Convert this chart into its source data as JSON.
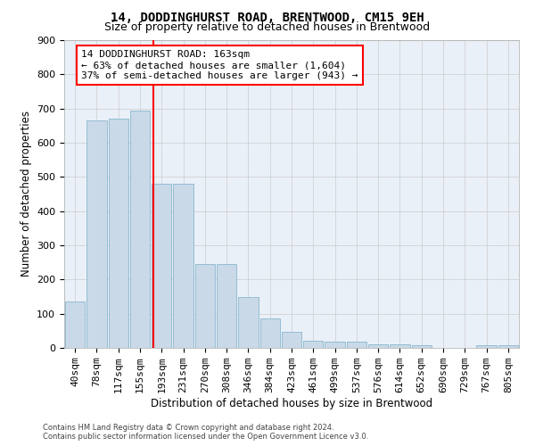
{
  "title": "14, DODDINGHURST ROAD, BRENTWOOD, CM15 9EH",
  "subtitle": "Size of property relative to detached houses in Brentwood",
  "xlabel": "Distribution of detached houses by size in Brentwood",
  "ylabel": "Number of detached properties",
  "bar_labels": [
    "40sqm",
    "78sqm",
    "117sqm",
    "155sqm",
    "193sqm",
    "231sqm",
    "270sqm",
    "308sqm",
    "346sqm",
    "384sqm",
    "423sqm",
    "461sqm",
    "499sqm",
    "537sqm",
    "576sqm",
    "614sqm",
    "652sqm",
    "690sqm",
    "729sqm",
    "767sqm",
    "805sqm"
  ],
  "bar_values": [
    135,
    665,
    670,
    693,
    480,
    480,
    245,
    245,
    148,
    85,
    48,
    22,
    18,
    18,
    10,
    10,
    7,
    1,
    0,
    8,
    8
  ],
  "bar_color": "#c9d9e8",
  "bar_edgecolor": "#7aaec8",
  "vline_x": 3.62,
  "vline_color": "red",
  "annotation_text": "14 DODDINGHURST ROAD: 163sqm\n← 63% of detached houses are smaller (1,604)\n37% of semi-detached houses are larger (943) →",
  "annotation_box_color": "white",
  "annotation_box_edgecolor": "red",
  "ylim": [
    0,
    900
  ],
  "yticks": [
    0,
    100,
    200,
    300,
    400,
    500,
    600,
    700,
    800,
    900
  ],
  "grid_color": "#cccccc",
  "bg_color": "#eaf0f8",
  "footnote": "Contains HM Land Registry data © Crown copyright and database right 2024.\nContains public sector information licensed under the Open Government Licence v3.0.",
  "title_fontsize": 10,
  "subtitle_fontsize": 9,
  "xlabel_fontsize": 8.5,
  "ylabel_fontsize": 8.5,
  "tick_fontsize": 8,
  "annot_fontsize": 8
}
